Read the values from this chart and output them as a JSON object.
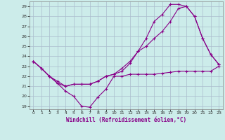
{
  "xlabel": "Windchill (Refroidissement éolien,°C)",
  "xlim": [
    -0.5,
    23.5
  ],
  "ylim": [
    18.7,
    29.5
  ],
  "yticks": [
    19,
    20,
    21,
    22,
    23,
    24,
    25,
    26,
    27,
    28,
    29
  ],
  "xticks": [
    0,
    1,
    2,
    3,
    4,
    5,
    6,
    7,
    8,
    9,
    10,
    11,
    12,
    13,
    14,
    15,
    16,
    17,
    18,
    19,
    20,
    21,
    22,
    23
  ],
  "background_color": "#ccecea",
  "grid_color": "#aabccc",
  "line_color": "#880088",
  "line1_y": [
    23.5,
    22.8,
    22.0,
    21.3,
    20.5,
    20.0,
    19.0,
    18.9,
    19.9,
    20.7,
    22.0,
    22.0,
    22.2,
    22.2,
    22.2,
    22.2,
    22.3,
    22.4,
    22.5,
    22.5,
    22.5,
    22.5,
    22.5,
    23.0
  ],
  "line2_y": [
    23.5,
    22.8,
    22.0,
    21.3,
    21.0,
    21.2,
    21.2,
    21.2,
    21.5,
    22.0,
    22.2,
    22.5,
    23.3,
    24.5,
    25.0,
    25.8,
    26.5,
    27.5,
    28.8,
    29.0,
    28.0,
    25.8,
    24.2,
    23.2
  ],
  "line3_y": [
    23.5,
    22.8,
    22.0,
    21.5,
    21.0,
    21.2,
    21.2,
    21.2,
    21.5,
    22.0,
    22.2,
    22.8,
    23.5,
    24.5,
    25.8,
    27.5,
    28.2,
    29.2,
    29.2,
    29.0,
    28.0,
    25.8,
    24.2,
    23.2
  ]
}
